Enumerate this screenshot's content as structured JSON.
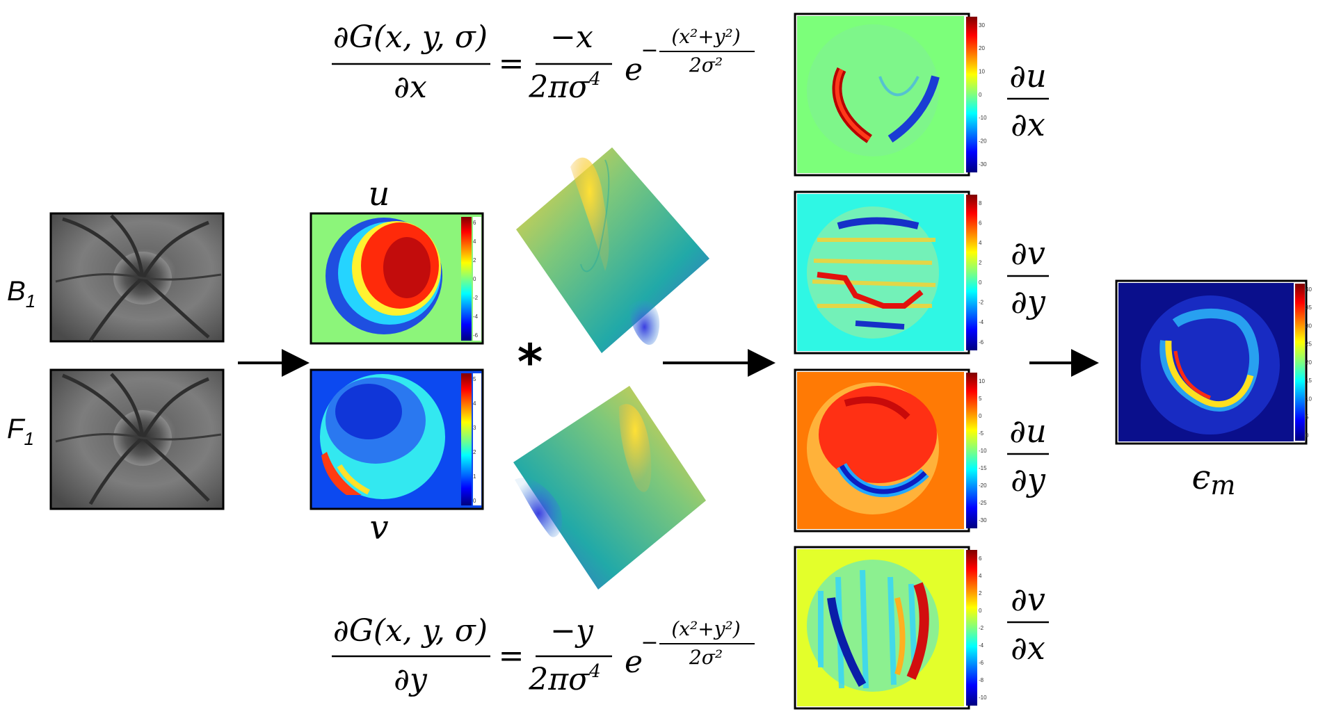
{
  "inputs": {
    "b_label": "B",
    "b_sub": "1",
    "f_label": "F",
    "f_sub": "1"
  },
  "fields": {
    "u_label": "u",
    "v_label": "v",
    "u_ticks": [
      "6",
      "4",
      "2",
      "0",
      "-2",
      "-4",
      "-6"
    ],
    "v_ticks": [
      "5",
      "4",
      "3",
      "2",
      "1",
      "0"
    ]
  },
  "convolution_symbol": "*",
  "equations": {
    "dx": {
      "lhs_num": "∂G(x, y, σ)",
      "lhs_den": "∂x",
      "equals": "=",
      "rhs_num": "−x",
      "rhs_den": "2πσ",
      "rhs_den_exp": "4",
      "base": "e",
      "exp_num": "(x²+y²)",
      "exp_den": "2σ²",
      "exp_sign": "−"
    },
    "dy": {
      "lhs_num": "∂G(x, y, σ)",
      "lhs_den": "∂y",
      "equals": "=",
      "rhs_num": "−y",
      "rhs_den": "2πσ",
      "rhs_den_exp": "4",
      "base": "e",
      "exp_num": "(x²+y²)",
      "exp_den": "2σ²",
      "exp_sign": "−"
    }
  },
  "derivatives": [
    {
      "num": "∂u",
      "den": "∂x",
      "ticks": [
        "30",
        "20",
        "10",
        "0",
        "-10",
        "-20",
        "-30"
      ],
      "bg": "#7cff7a"
    },
    {
      "num": "∂v",
      "den": "∂y",
      "ticks": [
        "8",
        "6",
        "4",
        "2",
        "0",
        "-2",
        "-4",
        "-6"
      ],
      "bg": "#2ff7e4"
    },
    {
      "num": "∂u",
      "den": "∂y",
      "ticks": [
        "10",
        "5",
        "0",
        "-5",
        "-10",
        "-15",
        "-20",
        "-25",
        "-30"
      ],
      "bg": "#ff7a05"
    },
    {
      "num": "∂v",
      "den": "∂x",
      "ticks": [
        "6",
        "4",
        "2",
        "0",
        "-2",
        "-4",
        "-6",
        "-8",
        "-10"
      ],
      "bg": "#e3ff2b"
    }
  ],
  "strain": {
    "label_base": "ϵ",
    "label_sub": "m",
    "ticks": [
      "40",
      "35",
      "30",
      "25",
      "20",
      "15",
      "10",
      "5",
      "0"
    ],
    "bg": "#0a0f8c"
  },
  "colors": {
    "jet_dark_blue": "#00007f",
    "jet_blue": "#0000ff",
    "jet_cyan": "#00ffff",
    "jet_yellow": "#ffff00",
    "jet_red": "#ff0000",
    "jet_dark_red": "#7f0000"
  }
}
